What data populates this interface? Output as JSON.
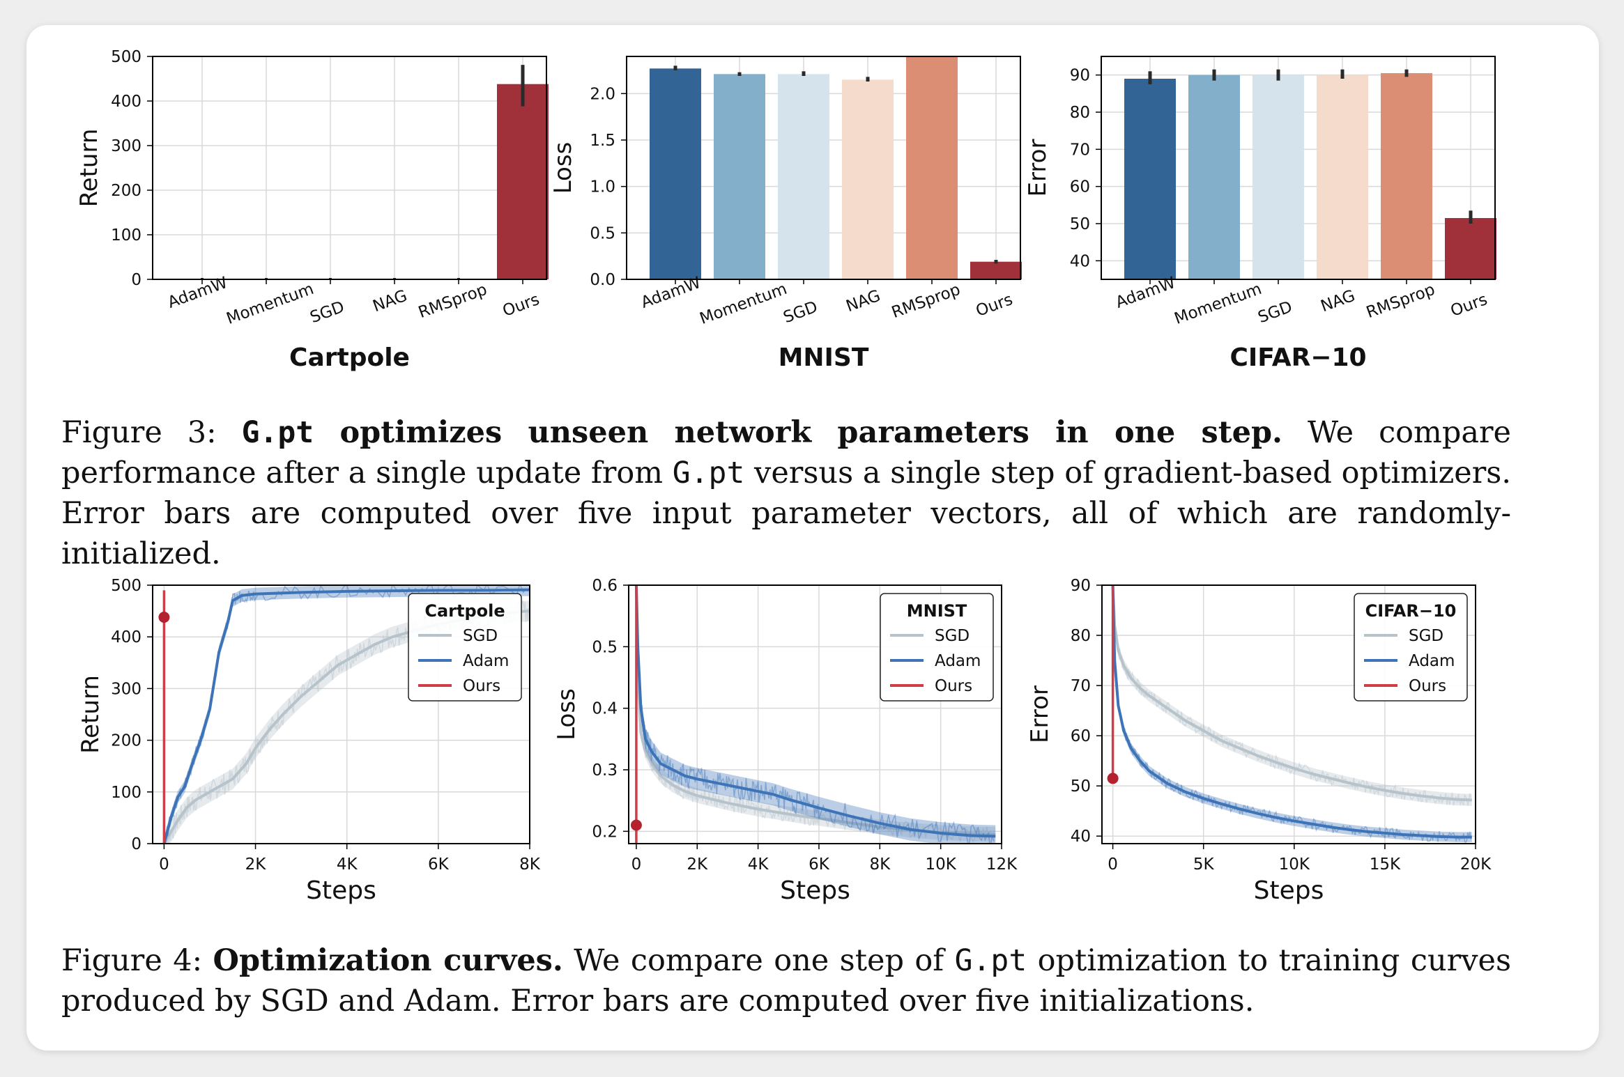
{
  "figure3": {
    "caption": {
      "label": "Figure 3:",
      "title_code": "G.pt",
      "title_rest": " optimizes unseen network parameters in one step.",
      "text_1": " We compare performance after a single update from ",
      "code": "G.pt",
      "text_2": " versus a single step of gradient-based optimizers. Error bars are computed over five input parameter vectors, all of which are randomly-initialized."
    }
  },
  "figure4": {
    "caption": {
      "label": "Figure 4:",
      "title": "Optimization curves.",
      "text_1": " We compare one step of ",
      "code": "G.pt",
      "text_2": " optimization to training curves produced by SGD and Adam. Error bars are computed over five initializations."
    }
  },
  "colors": {
    "AdamW": "#336496",
    "Momentum": "#84afca",
    "SGD": "#d5e3ec",
    "NAG": "#f4dbcc",
    "RMSprop": "#db8e73",
    "Ours": "#a0313a",
    "line_sgd": "#b6c3cb",
    "line_adam": "#3d74b7",
    "line_ours": "#cf3d49"
  },
  "chart_data": [
    {
      "type": "bar",
      "title": "Cartpole",
      "ylabel": "Return",
      "categories": [
        "AdamW",
        "Momentum",
        "SGD",
        "NAG",
        "RMSprop",
        "Ours"
      ],
      "values": [
        0,
        0,
        0,
        0,
        0,
        438
      ],
      "error": [
        [
          0,
          0
        ],
        [
          0,
          0
        ],
        [
          0,
          0
        ],
        [
          0,
          0
        ],
        [
          0,
          0
        ],
        [
          388,
          481
        ]
      ],
      "ylim": [
        0,
        500
      ],
      "yticks": [
        0,
        100,
        200,
        300,
        400,
        500
      ],
      "ytick_labels": [
        "0",
        "100",
        "200",
        "300",
        "400",
        "500"
      ]
    },
    {
      "type": "bar",
      "title": "MNIST",
      "ylabel": "Loss",
      "categories": [
        "AdamW",
        "Momentum",
        "SGD",
        "NAG",
        "RMSprop",
        "Ours"
      ],
      "values": [
        2.27,
        2.21,
        2.21,
        2.15,
        2.4,
        0.19
      ],
      "error": [
        [
          2.25,
          2.3
        ],
        [
          2.19,
          2.23
        ],
        [
          2.19,
          2.24
        ],
        [
          2.13,
          2.18
        ],
        [
          2.4,
          2.4
        ],
        [
          0.17,
          0.21
        ]
      ],
      "ylim": [
        0,
        2.4
      ],
      "yticks": [
        0,
        0.5,
        1.0,
        1.5,
        2.0
      ],
      "ytick_labels": [
        "0.0",
        "0.5",
        "1.0",
        "1.5",
        "2.0"
      ]
    },
    {
      "type": "bar",
      "title": "CIFAR−10",
      "ylabel": "Error",
      "categories": [
        "AdamW",
        "Momentum",
        "SGD",
        "NAG",
        "RMSprop",
        "Ours"
      ],
      "values": [
        89,
        90,
        90,
        90,
        90.5,
        51.5
      ],
      "error": [
        [
          87.5,
          91
        ],
        [
          88.5,
          91.5
        ],
        [
          88.5,
          91.5
        ],
        [
          89,
          91.5
        ],
        [
          89.5,
          91.5
        ],
        [
          50,
          53.5
        ]
      ],
      "ylim": [
        35,
        95
      ],
      "yticks": [
        40,
        50,
        60,
        70,
        80,
        90
      ],
      "ytick_labels": [
        "40",
        "50",
        "60",
        "70",
        "80",
        "90"
      ]
    },
    {
      "type": "line",
      "legend_title": "Cartpole",
      "xlabel": "Steps",
      "ylabel": "Return",
      "xlim": [
        -250,
        8000
      ],
      "ylim": [
        0,
        500
      ],
      "xticks": [
        0,
        2000,
        4000,
        6000,
        8000
      ],
      "xtick_labels": [
        "0",
        "2K",
        "4K",
        "6K",
        "8K"
      ],
      "yticks": [
        0,
        100,
        200,
        300,
        400,
        500
      ],
      "ytick_labels": [
        "0",
        "100",
        "200",
        "300",
        "400",
        "500"
      ],
      "legend_position": "upper right",
      "series": [
        {
          "name": "SGD",
          "x": [
            0,
            100,
            300,
            500,
            700,
            1000,
            1200,
            1500,
            1800,
            2000,
            2300,
            2600,
            3000,
            3400,
            3800,
            4200,
            4600,
            5000,
            5400,
            5800,
            6200,
            6600,
            7000,
            7400,
            7800,
            8000
          ],
          "y": [
            0,
            15,
            45,
            70,
            85,
            100,
            110,
            125,
            155,
            185,
            220,
            250,
            285,
            315,
            345,
            365,
            385,
            400,
            410,
            420,
            428,
            435,
            440,
            445,
            449,
            450
          ],
          "band": 20
        },
        {
          "name": "Adam",
          "x": [
            0,
            150,
            300,
            450,
            600,
            800,
            1000,
            1200,
            1400,
            1500,
            1700,
            2000,
            3000,
            4000,
            5000,
            6000,
            7000,
            8000
          ],
          "y": [
            0,
            50,
            90,
            110,
            150,
            200,
            260,
            370,
            430,
            470,
            480,
            483,
            486,
            488,
            489,
            490,
            490,
            491
          ],
          "band": 12
        },
        {
          "name": "Ours",
          "x": [
            0
          ],
          "y": [
            438
          ],
          "error": [
            0,
            490
          ]
        }
      ]
    },
    {
      "type": "line",
      "legend_title": "MNIST",
      "xlabel": "Steps",
      "ylabel": "Loss",
      "xlim": [
        -250,
        12000
      ],
      "ylim": [
        0.18,
        0.6
      ],
      "xticks": [
        0,
        2000,
        4000,
        6000,
        8000,
        10000,
        12000
      ],
      "xtick_labels": [
        "0",
        "2K",
        "4K",
        "6K",
        "8K",
        "10K",
        "12K"
      ],
      "yticks": [
        0.2,
        0.3,
        0.4,
        0.5,
        0.6
      ],
      "ytick_labels": [
        "0.2",
        "0.3",
        "0.4",
        "0.5",
        "0.6"
      ],
      "legend_position": "upper right",
      "series": [
        {
          "name": "SGD",
          "x": [
            0,
            50,
            150,
            300,
            500,
            800,
            1200,
            1600,
            2000,
            2500,
            3000,
            3500,
            4000,
            4500,
            5000,
            5500,
            6000,
            7000,
            8000,
            9000,
            10000,
            11000,
            11800
          ],
          "y": [
            0.6,
            0.45,
            0.36,
            0.33,
            0.31,
            0.29,
            0.275,
            0.265,
            0.258,
            0.252,
            0.246,
            0.241,
            0.236,
            0.232,
            0.228,
            0.224,
            0.221,
            0.214,
            0.207,
            0.202,
            0.198,
            0.196,
            0.195
          ],
          "band": 0.012
        },
        {
          "name": "Adam",
          "x": [
            0,
            50,
            150,
            300,
            500,
            800,
            1200,
            1600,
            2000,
            2500,
            3000,
            3500,
            4000,
            4500,
            5000,
            5500,
            6000,
            7000,
            8000,
            9000,
            10000,
            11000,
            11800
          ],
          "y": [
            0.6,
            0.5,
            0.4,
            0.35,
            0.33,
            0.31,
            0.3,
            0.29,
            0.285,
            0.28,
            0.275,
            0.27,
            0.265,
            0.26,
            0.252,
            0.245,
            0.238,
            0.225,
            0.213,
            0.203,
            0.197,
            0.193,
            0.192
          ],
          "band": 0.018
        },
        {
          "name": "Ours",
          "x": [
            0
          ],
          "y": [
            0.21
          ],
          "error": [
            0.18,
            0.6
          ]
        }
      ]
    },
    {
      "type": "line",
      "legend_title": "CIFAR−10",
      "xlabel": "Steps",
      "ylabel": "Error",
      "xlim": [
        -600,
        20000
      ],
      "ylim": [
        38.5,
        90
      ],
      "xticks": [
        0,
        5000,
        10000,
        15000,
        20000
      ],
      "xtick_labels": [
        "0",
        "5K",
        "10K",
        "15K",
        "20K"
      ],
      "yticks": [
        40,
        50,
        60,
        70,
        80,
        90
      ],
      "ytick_labels": [
        "40",
        "50",
        "60",
        "70",
        "80",
        "90"
      ],
      "legend_position": "upper right",
      "series": [
        {
          "name": "SGD",
          "x": [
            0,
            100,
            300,
            600,
            1000,
            1500,
            2000,
            3000,
            4000,
            5000,
            6000,
            7000,
            8000,
            9000,
            10000,
            11000,
            12000,
            13000,
            14000,
            15000,
            16000,
            17000,
            18000,
            19000,
            19800
          ],
          "y": [
            90,
            82,
            77,
            74,
            71.5,
            69.5,
            68,
            65.5,
            63,
            61,
            59,
            57.5,
            56,
            54.7,
            53.5,
            52.4,
            51.5,
            50.6,
            49.8,
            49.1,
            48.5,
            48,
            47.6,
            47.3,
            47.2
          ],
          "band": 1.2
        },
        {
          "name": "Adam",
          "x": [
            0,
            100,
            300,
            600,
            1000,
            1500,
            2000,
            3000,
            4000,
            5000,
            6000,
            7000,
            8000,
            9000,
            10000,
            11000,
            12000,
            13000,
            14000,
            15000,
            16000,
            17000,
            18000,
            19000,
            19800
          ],
          "y": [
            90,
            75,
            66,
            61,
            57.5,
            55,
            53,
            50.5,
            48.8,
            47.5,
            46.4,
            45.4,
            44.5,
            43.7,
            43,
            42.4,
            41.8,
            41.3,
            40.9,
            40.6,
            40.3,
            40.1,
            39.9,
            39.8,
            39.8
          ],
          "band": 1.0
        },
        {
          "name": "Ours",
          "x": [
            0
          ],
          "y": [
            51.5
          ],
          "error": [
            51.5,
            90
          ]
        }
      ]
    }
  ]
}
